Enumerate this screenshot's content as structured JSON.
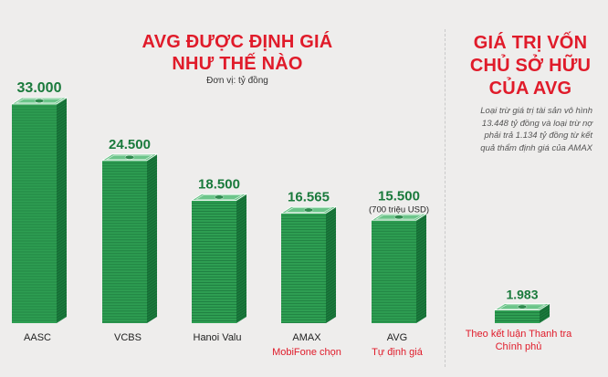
{
  "left_title": [
    "AVG ĐƯỢC ĐỊNH GIÁ",
    "NHƯ THẾ NÀO"
  ],
  "unit": "Đơn vị: tỷ đồng",
  "right_title": [
    "GIÁ TRỊ VỐN",
    "CHỦ SỞ HỮU",
    "CỦA AVG"
  ],
  "right_note": [
    "Loại trừ giá trị tài sản vô hình",
    "13.448 tỷ đồng và loại trừ nợ",
    "phải trả 1.134 tỷ đồng từ kết",
    "quả thẩm định giá của AMAX"
  ],
  "colors": {
    "title": "#e01b2a",
    "money_green": "#2e9e52",
    "money_dark": "#1a7a3c",
    "value_text": "#1a7a3c",
    "background": "#eeedec"
  },
  "chart_data": [
    {
      "type": "bar",
      "categories": [
        "AASC",
        "VCBS",
        "Hanoi Valu",
        "AMAX",
        "AVG"
      ],
      "values": [
        33000,
        24500,
        18500,
        16565,
        15500
      ],
      "value_labels": [
        "33.000",
        "24.500",
        "18.500",
        "16.565",
        "15.500"
      ],
      "sublabels": [
        "",
        "",
        "",
        "MobiFone chọn",
        "Tự định giá"
      ],
      "annotations": [
        "",
        "",
        "",
        "",
        "(700 triệu USD)"
      ],
      "title": "AVG ĐƯỢC ĐỊNH GIÁ NHƯ THẾ NÀO",
      "ylabel": "Đơn vị: tỷ đồng",
      "ylim": [
        0,
        33000
      ],
      "grid": false,
      "bar_style": "stacked banknotes"
    },
    {
      "type": "bar",
      "categories": [
        "Theo kết luận Thanh tra Chính phủ"
      ],
      "category_lines": [
        [
          "Theo kết luận Thanh tra",
          "Chính phủ"
        ]
      ],
      "values": [
        1983
      ],
      "value_labels": [
        "1.983"
      ],
      "title": "GIÁ TRỊ VỐN CHỦ SỞ HỮU CỦA AVG",
      "ylim": [
        0,
        33000
      ],
      "grid": false,
      "bar_style": "stacked banknotes"
    }
  ]
}
